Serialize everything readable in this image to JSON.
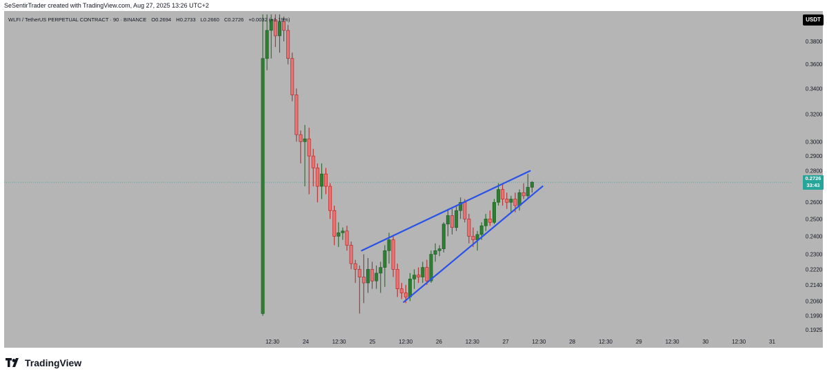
{
  "header": {
    "attribution": "SeSentirTrader created with TradingView.com, Aug 27, 2025 13:26 UTC+2"
  },
  "legend": {
    "symbol": "WLFI / TetherUS PERPETUAL CONTRACT · 90 · BINANCE",
    "open": "O0.2694",
    "high": "H0.2733",
    "low": "L0.2660",
    "close": "C0.2726",
    "change": "+0.0032 (+1.19%)"
  },
  "quote_currency": "USDT",
  "last_price": {
    "price": "0.2726",
    "countdown": "33:43"
  },
  "footer": {
    "brand": "TradingView",
    "logo_icon": "tradingview-logo-icon"
  },
  "colors": {
    "background": "#b5b5b5",
    "up": "#26a69a",
    "up_body": "#2e7d32",
    "down": "#e57373",
    "wedge": "#2a52e8",
    "price_line": "#26a69a"
  },
  "chart_data": {
    "type": "candlestick",
    "y_axis": {
      "scale": "log",
      "ticks": [
        "0.3800",
        "0.3600",
        "0.3400",
        "0.3200",
        "0.3000",
        "0.2900",
        "0.2800",
        "0.2600",
        "0.2500",
        "0.2400",
        "0.2300",
        "0.2220",
        "0.2140",
        "0.2060",
        "0.1990",
        "0.1925"
      ],
      "range": [
        0.19,
        0.405
      ]
    },
    "x_axis": {
      "ticks": [
        "12:30",
        "24",
        "12:30",
        "25",
        "12:30",
        "26",
        "12:30",
        "27",
        "12:30",
        "28",
        "12:30",
        "29",
        "12:30",
        "30",
        "12:30",
        "31"
      ],
      "bar_interval": "90 minutes"
    },
    "candles": [
      {
        "o": 0.2,
        "h": 0.405,
        "l": 0.199,
        "c": 0.365
      },
      {
        "o": 0.365,
        "h": 0.405,
        "l": 0.355,
        "c": 0.39
      },
      {
        "o": 0.39,
        "h": 0.405,
        "l": 0.365,
        "c": 0.4
      },
      {
        "o": 0.4,
        "h": 0.405,
        "l": 0.375,
        "c": 0.385
      },
      {
        "o": 0.385,
        "h": 0.405,
        "l": 0.37,
        "c": 0.398
      },
      {
        "o": 0.398,
        "h": 0.403,
        "l": 0.38,
        "c": 0.39
      },
      {
        "o": 0.39,
        "h": 0.395,
        "l": 0.36,
        "c": 0.365
      },
      {
        "o": 0.365,
        "h": 0.37,
        "l": 0.33,
        "c": 0.335
      },
      {
        "o": 0.335,
        "h": 0.34,
        "l": 0.3,
        "c": 0.305
      },
      {
        "o": 0.305,
        "h": 0.308,
        "l": 0.285,
        "c": 0.3
      },
      {
        "o": 0.3,
        "h": 0.312,
        "l": 0.27,
        "c": 0.302
      },
      {
        "o": 0.302,
        "h": 0.31,
        "l": 0.265,
        "c": 0.29
      },
      {
        "o": 0.29,
        "h": 0.295,
        "l": 0.27,
        "c": 0.282
      },
      {
        "o": 0.282,
        "h": 0.285,
        "l": 0.26,
        "c": 0.27
      },
      {
        "o": 0.27,
        "h": 0.285,
        "l": 0.262,
        "c": 0.278
      },
      {
        "o": 0.278,
        "h": 0.282,
        "l": 0.265,
        "c": 0.27
      },
      {
        "o": 0.27,
        "h": 0.272,
        "l": 0.25,
        "c": 0.255
      },
      {
        "o": 0.255,
        "h": 0.258,
        "l": 0.235,
        "c": 0.24
      },
      {
        "o": 0.24,
        "h": 0.248,
        "l": 0.234,
        "c": 0.242
      },
      {
        "o": 0.242,
        "h": 0.245,
        "l": 0.238,
        "c": 0.243
      },
      {
        "o": 0.243,
        "h": 0.246,
        "l": 0.232,
        "c": 0.235
      },
      {
        "o": 0.235,
        "h": 0.237,
        "l": 0.222,
        "c": 0.225
      },
      {
        "o": 0.225,
        "h": 0.227,
        "l": 0.215,
        "c": 0.222
      },
      {
        "o": 0.222,
        "h": 0.224,
        "l": 0.2,
        "c": 0.218
      },
      {
        "o": 0.218,
        "h": 0.23,
        "l": 0.205,
        "c": 0.215
      },
      {
        "o": 0.215,
        "h": 0.228,
        "l": 0.21,
        "c": 0.222
      },
      {
        "o": 0.222,
        "h": 0.226,
        "l": 0.212,
        "c": 0.216
      },
      {
        "o": 0.216,
        "h": 0.224,
        "l": 0.212,
        "c": 0.22
      },
      {
        "o": 0.22,
        "h": 0.226,
        "l": 0.21,
        "c": 0.223
      },
      {
        "o": 0.223,
        "h": 0.235,
        "l": 0.213,
        "c": 0.232
      },
      {
        "o": 0.232,
        "h": 0.242,
        "l": 0.225,
        "c": 0.238
      },
      {
        "o": 0.238,
        "h": 0.24,
        "l": 0.218,
        "c": 0.222
      },
      {
        "o": 0.222,
        "h": 0.225,
        "l": 0.208,
        "c": 0.212
      },
      {
        "o": 0.212,
        "h": 0.215,
        "l": 0.207,
        "c": 0.21
      },
      {
        "o": 0.21,
        "h": 0.214,
        "l": 0.205,
        "c": 0.208
      },
      {
        "o": 0.208,
        "h": 0.22,
        "l": 0.206,
        "c": 0.217
      },
      {
        "o": 0.217,
        "h": 0.222,
        "l": 0.212,
        "c": 0.219
      },
      {
        "o": 0.219,
        "h": 0.223,
        "l": 0.215,
        "c": 0.218
      },
      {
        "o": 0.218,
        "h": 0.226,
        "l": 0.215,
        "c": 0.223
      },
      {
        "o": 0.223,
        "h": 0.227,
        "l": 0.214,
        "c": 0.216
      },
      {
        "o": 0.216,
        "h": 0.232,
        "l": 0.215,
        "c": 0.23
      },
      {
        "o": 0.23,
        "h": 0.236,
        "l": 0.226,
        "c": 0.232
      },
      {
        "o": 0.232,
        "h": 0.235,
        "l": 0.229,
        "c": 0.233
      },
      {
        "o": 0.233,
        "h": 0.248,
        "l": 0.231,
        "c": 0.247
      },
      {
        "o": 0.247,
        "h": 0.256,
        "l": 0.24,
        "c": 0.252
      },
      {
        "o": 0.252,
        "h": 0.256,
        "l": 0.241,
        "c": 0.245
      },
      {
        "o": 0.245,
        "h": 0.258,
        "l": 0.243,
        "c": 0.255
      },
      {
        "o": 0.255,
        "h": 0.263,
        "l": 0.25,
        "c": 0.26
      },
      {
        "o": 0.26,
        "h": 0.262,
        "l": 0.248,
        "c": 0.25
      },
      {
        "o": 0.25,
        "h": 0.253,
        "l": 0.236,
        "c": 0.24
      },
      {
        "o": 0.24,
        "h": 0.245,
        "l": 0.234,
        "c": 0.238
      },
      {
        "o": 0.238,
        "h": 0.243,
        "l": 0.232,
        "c": 0.241
      },
      {
        "o": 0.241,
        "h": 0.248,
        "l": 0.238,
        "c": 0.246
      },
      {
        "o": 0.246,
        "h": 0.253,
        "l": 0.243,
        "c": 0.25
      },
      {
        "o": 0.25,
        "h": 0.255,
        "l": 0.246,
        "c": 0.248
      },
      {
        "o": 0.248,
        "h": 0.262,
        "l": 0.247,
        "c": 0.26
      },
      {
        "o": 0.26,
        "h": 0.272,
        "l": 0.258,
        "c": 0.268
      },
      {
        "o": 0.268,
        "h": 0.272,
        "l": 0.258,
        "c": 0.262
      },
      {
        "o": 0.262,
        "h": 0.266,
        "l": 0.256,
        "c": 0.26
      },
      {
        "o": 0.26,
        "h": 0.264,
        "l": 0.254,
        "c": 0.262
      },
      {
        "o": 0.262,
        "h": 0.266,
        "l": 0.254,
        "c": 0.258
      },
      {
        "o": 0.258,
        "h": 0.268,
        "l": 0.255,
        "c": 0.266
      },
      {
        "o": 0.266,
        "h": 0.272,
        "l": 0.262,
        "c": 0.264
      },
      {
        "o": 0.264,
        "h": 0.278,
        "l": 0.262,
        "c": 0.2694
      },
      {
        "o": 0.2694,
        "h": 0.2733,
        "l": 0.266,
        "c": 0.2726
      }
    ],
    "wedge_lines": [
      {
        "from": {
          "bar": 23.5,
          "price": 0.232
        },
        "to": {
          "bar": 63.5,
          "price": 0.28
        }
      },
      {
        "from": {
          "bar": 33.5,
          "price": 0.2055
        },
        "to": {
          "bar": 66.5,
          "price": 0.27
        }
      }
    ],
    "current_price_line": 0.2726
  }
}
